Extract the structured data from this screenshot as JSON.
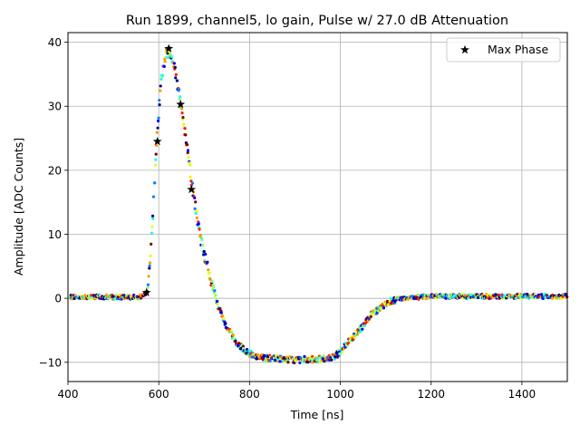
{
  "chart_data": {
    "type": "scatter",
    "title": "Run 1899, channel5, lo gain, Pulse w/ 27.0 dB Attenuation",
    "xlabel": "Time [ns]",
    "ylabel": "Amplitude [ADC Counts]",
    "xlim": [
      400,
      1500
    ],
    "ylim": [
      -13,
      41.5
    ],
    "xticks": [
      400,
      600,
      800,
      1000,
      1200,
      1400
    ],
    "yticks": [
      -10,
      0,
      10,
      20,
      30,
      40
    ],
    "grid": true,
    "legend_position": "top-right",
    "series": [
      {
        "name": "samples",
        "colormap": [
          "#00007f",
          "#0000ff",
          "#007fff",
          "#19ffe5",
          "#7fff7f",
          "#e5ff19",
          "#ff9900",
          "#ff1e00",
          "#7f0000"
        ],
        "envelope": [
          [
            400,
            0.2
          ],
          [
            560,
            0.2
          ],
          [
            575,
            1.0
          ],
          [
            585,
            10.0
          ],
          [
            595,
            24.0
          ],
          [
            605,
            34.0
          ],
          [
            615,
            38.0
          ],
          [
            625,
            38.8
          ],
          [
            635,
            36.0
          ],
          [
            650,
            30.0
          ],
          [
            665,
            22.0
          ],
          [
            675,
            17.0
          ],
          [
            690,
            10.0
          ],
          [
            710,
            4.0
          ],
          [
            730,
            -1.0
          ],
          [
            750,
            -4.5
          ],
          [
            770,
            -6.8
          ],
          [
            790,
            -8.2
          ],
          [
            810,
            -9.0
          ],
          [
            840,
            -9.4
          ],
          [
            900,
            -9.6
          ],
          [
            960,
            -9.5
          ],
          [
            990,
            -9.0
          ],
          [
            1010,
            -7.5
          ],
          [
            1030,
            -6.0
          ],
          [
            1050,
            -4.2
          ],
          [
            1070,
            -2.5
          ],
          [
            1090,
            -1.3
          ],
          [
            1110,
            -0.5
          ],
          [
            1130,
            0.0
          ],
          [
            1200,
            0.3
          ],
          [
            1300,
            0.3
          ],
          [
            1400,
            0.3
          ],
          [
            1500,
            0.3
          ]
        ]
      },
      {
        "name": "Max Phase",
        "marker": "star",
        "color": "#000000",
        "points": [
          [
            573,
            0.9
          ],
          [
            597,
            24.5
          ],
          [
            622,
            39.0
          ],
          [
            648,
            30.3
          ],
          [
            672,
            17.0
          ]
        ]
      }
    ]
  }
}
